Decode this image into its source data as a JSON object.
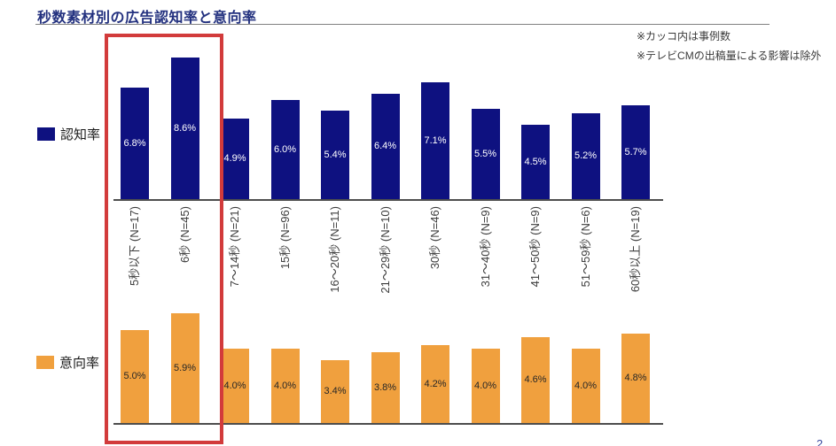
{
  "title": "秒数素材別の広告認知率と意向率",
  "notes": {
    "line1": "※カッコ内は事例数",
    "line2": "※テレビCMの出稿量による影響は除外"
  },
  "legend": {
    "awareness_label": "認知率",
    "intent_label": "意向率"
  },
  "page_number": "2",
  "colors": {
    "awareness_bar": "#0e1180",
    "intent_bar": "#f0a03e",
    "awareness_value_text": "#ffffff",
    "intent_value_text": "#262626",
    "title_text": "#23317f",
    "highlight_box": "#d23b3b",
    "axis_line": "#4d4d4d"
  },
  "chart_data": {
    "type": "bar",
    "categories": [
      "5秒以下 (N=17)",
      "6秒 (N=45)",
      "7～14秒 (N=21)",
      "15秒 (N=96)",
      "16～20秒 (N=11)",
      "21～29秒 (N=10)",
      "30秒 (N=46)",
      "31～40秒 (N=9)",
      "41～50秒 (N=9)",
      "51～59秒 (N=6)",
      "60秒以上 (N=19)"
    ],
    "series": [
      {
        "name": "認知率",
        "values": [
          6.8,
          8.6,
          4.9,
          6.0,
          5.4,
          6.4,
          7.1,
          5.5,
          4.5,
          5.2,
          5.7
        ]
      },
      {
        "name": "意向率",
        "values": [
          5.0,
          5.9,
          4.0,
          4.0,
          3.4,
          3.8,
          4.2,
          4.0,
          4.6,
          4.0,
          4.8
        ]
      }
    ],
    "value_unit": "%",
    "value_label_format": "one_decimal_percent",
    "highlighted_categories": [
      "5秒以下 (N=17)",
      "6秒 (N=45)"
    ],
    "annotations": [
      "※カッコ内は事例数",
      "※テレビCMの出稿量による影響は除外"
    ],
    "legend_position": "left",
    "grid": false,
    "xlabel": "",
    "ylabel": ""
  }
}
